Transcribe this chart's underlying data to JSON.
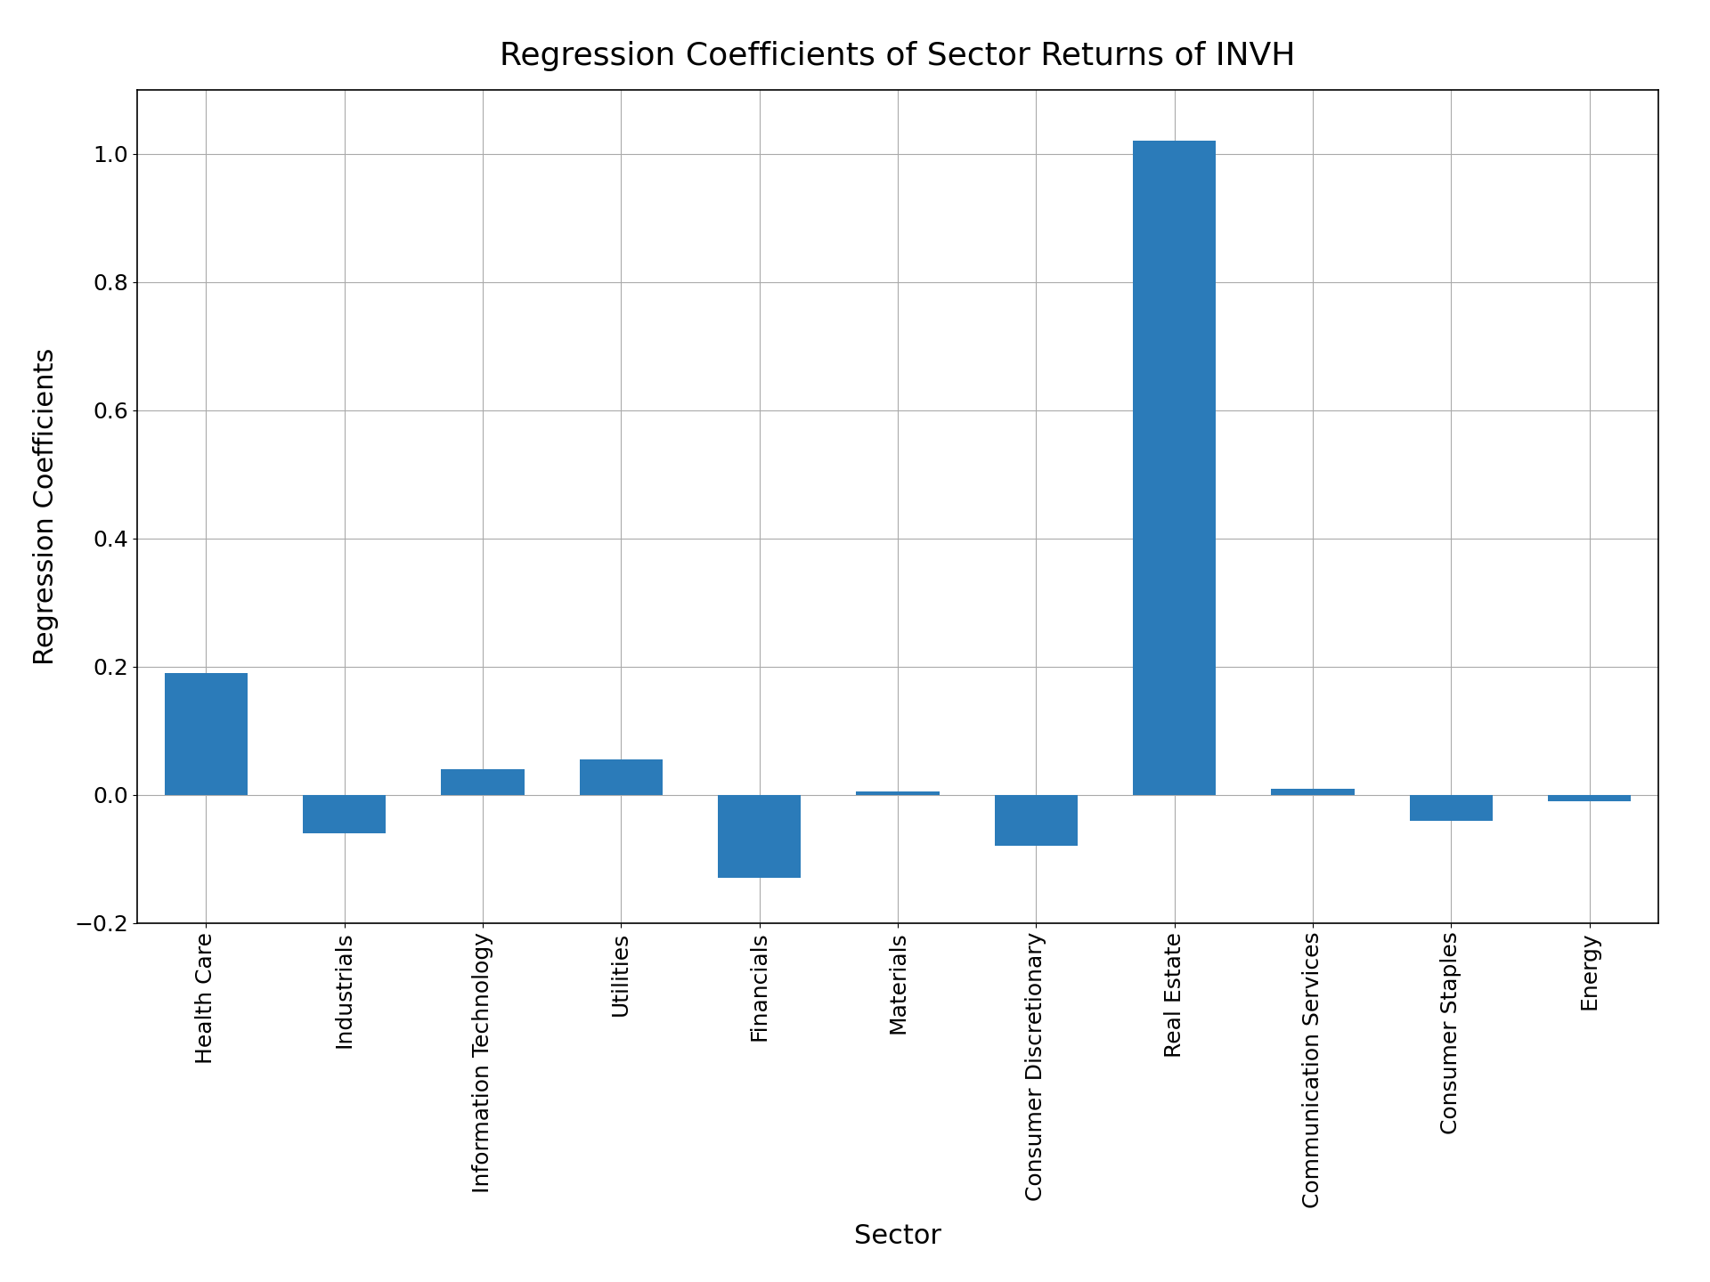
{
  "title": "Regression Coefficients of Sector Returns of INVH",
  "xlabel": "Sector",
  "ylabel": "Regression Coefficients",
  "categories": [
    "Health Care",
    "Industrials",
    "Information Technology",
    "Utilities",
    "Financials",
    "Materials",
    "Consumer Discretionary",
    "Real Estate",
    "Communication Services",
    "Consumer Staples",
    "Energy"
  ],
  "values": [
    0.19,
    -0.06,
    0.04,
    0.055,
    -0.13,
    0.005,
    -0.08,
    1.02,
    0.01,
    -0.04,
    -0.01
  ],
  "bar_color": "#2b7bb9",
  "background_color": "#ffffff",
  "grid_color": "#aaaaaa",
  "title_fontsize": 26,
  "label_fontsize": 22,
  "tick_fontsize": 18,
  "ylim": [
    -0.2,
    1.1
  ],
  "yticks": [
    -0.2,
    0.0,
    0.2,
    0.4,
    0.6,
    0.8,
    1.0
  ]
}
